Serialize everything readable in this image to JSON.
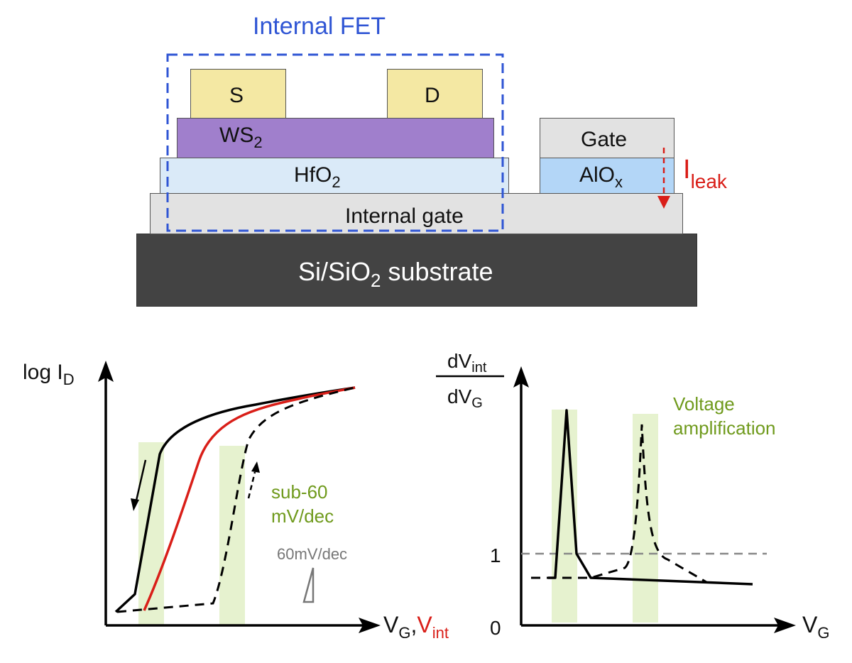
{
  "device": {
    "internal_fet_label": "Internal FET",
    "source_label": "S",
    "drain_label": "D",
    "channel": {
      "main": "WS",
      "sub": "2"
    },
    "dielectric": {
      "main": "HfO",
      "sub": "2"
    },
    "gate_label": "Gate",
    "gate_oxide": {
      "main": "AlO",
      "sub": "x"
    },
    "internal_gate_label": "Internal gate",
    "substrate": {
      "pre": "Si/SiO",
      "sub": "2",
      "post": " substrate"
    },
    "leak": {
      "main": "I",
      "sub": "leak"
    }
  },
  "colors": {
    "contact": "#f4e8a3",
    "channel": "#a07fcc",
    "hfo2": "#daeaf8",
    "aloX": "#b3d6f7",
    "gate": "#e2e2e2",
    "internal_gate": "#e2e2e2",
    "substrate": "#434343",
    "fet_box": "#2f55d4",
    "leak": "#d91e18",
    "green_text": "#6f9a1c",
    "highlight": "#e6f2cf",
    "red_curve": "#d91e18",
    "scale_gray": "#777777"
  },
  "left_plot": {
    "ylabel": {
      "main": "log I",
      "sub": "D"
    },
    "xlabel": {
      "main": "V",
      "sub": "G",
      "sep": ",",
      "main2": "V",
      "sub2": "int"
    },
    "annotation": [
      "sub-60",
      "mV/dec"
    ],
    "reference_slope": "60mV/dec"
  },
  "right_plot": {
    "ylabel_num": {
      "main": "dV",
      "sub": "int"
    },
    "ylabel_den": {
      "main": "dV",
      "sub": "G"
    },
    "tick_one": "1",
    "tick_zero": "0",
    "xlabel": {
      "main": "V",
      "sub": "G"
    },
    "annotation": [
      "Voltage",
      "amplification"
    ]
  }
}
